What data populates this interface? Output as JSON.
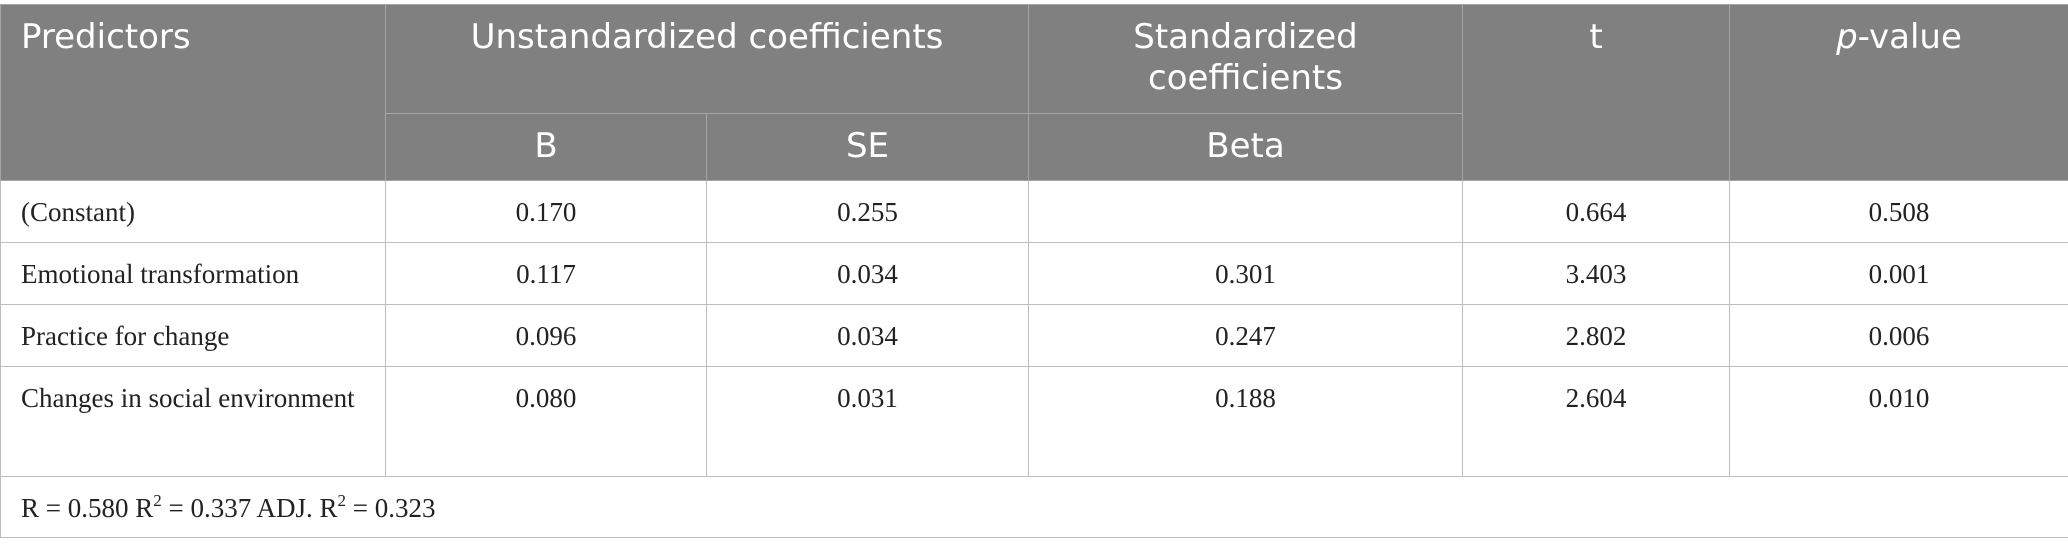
{
  "table": {
    "headers": {
      "predictors": "Predictors",
      "unstandardized": "Unstandardized coefficients",
      "standardized": "Standardized coefficients",
      "t": "t",
      "p_italic": "p",
      "p_rest": "-value",
      "b": "B",
      "se": "SE",
      "beta": "Beta"
    },
    "rows": [
      {
        "predictor": "(Constant)",
        "b": "0.170",
        "se": "0.255",
        "beta": "",
        "t": "0.664",
        "p": "0.508"
      },
      {
        "predictor": "Emotional transformation",
        "b": "0.117",
        "se": "0.034",
        "beta": "0.301",
        "t": "3.403",
        "p": "0.001"
      },
      {
        "predictor": "Practice for change",
        "b": "0.096",
        "se": "0.034",
        "beta": "0.247",
        "t": "2.802",
        "p": "0.006"
      },
      {
        "predictor": "Changes in social environment",
        "b": "0.080",
        "se": "0.031",
        "beta": "0.188",
        "t": "2.604",
        "p": "0.010"
      }
    ],
    "footer": {
      "r_part": "R = 0.580 R",
      "sup1": "2",
      "r2_part": " = 0.337 ADJ. R",
      "sup2": "2",
      "adj_part": " = 0.323"
    }
  }
}
